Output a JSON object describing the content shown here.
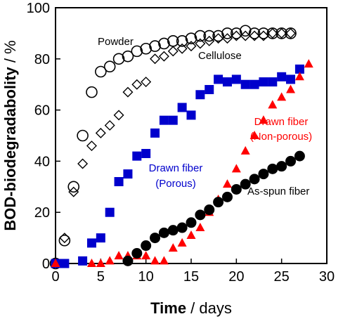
{
  "chart_data": {
    "type": "scatter",
    "xlabel_bold": "Time",
    "xlabel_rest": " / days",
    "ylabel_bold": "BOD-biodegradabolity",
    "ylabel_rest": " / %",
    "xlim": [
      0,
      30
    ],
    "ylim": [
      0,
      100
    ],
    "xticks": [
      0,
      5,
      10,
      15,
      20,
      25,
      30
    ],
    "yticks": [
      0,
      20,
      40,
      60,
      80,
      100
    ],
    "grid": false,
    "legend": "none",
    "series": [
      {
        "name": "Powder",
        "marker": "open-circle",
        "color": "#000000",
        "label_lines": [
          "Powder"
        ],
        "x": [
          0,
          1,
          2,
          3,
          4,
          5,
          6,
          7,
          8,
          9,
          10,
          11,
          12,
          13,
          14,
          15,
          16,
          17,
          18,
          19,
          20,
          21,
          22,
          23,
          24,
          25,
          26
        ],
        "y": [
          0,
          9,
          30,
          50,
          67,
          75,
          77,
          80,
          81,
          83,
          84,
          85,
          86,
          87,
          87,
          88,
          89,
          89,
          89,
          90,
          90,
          91,
          90,
          90,
          90,
          90,
          90
        ]
      },
      {
        "name": "Cellulose",
        "marker": "open-diamond",
        "color": "#000000",
        "label_lines": [
          "Cellulose"
        ],
        "x": [
          1,
          2,
          3,
          4,
          5,
          6,
          7,
          8,
          9,
          10,
          11,
          12,
          13,
          14,
          15,
          16,
          17,
          18,
          19,
          20,
          21,
          22,
          23,
          24,
          25,
          26
        ],
        "y": [
          10,
          28,
          39,
          46,
          51,
          54,
          58,
          67,
          70,
          71,
          80,
          81,
          83,
          84,
          85,
          86,
          87,
          88,
          88,
          89,
          89,
          89,
          89,
          90,
          90,
          90
        ]
      },
      {
        "name": "Drawn fiber (Porous)",
        "marker": "filled-square",
        "color": "#0000cc",
        "label_lines": [
          "Drawn fiber",
          "(Porous)"
        ],
        "x": [
          0,
          1,
          3,
          4,
          5,
          6,
          7,
          8,
          9,
          10,
          11,
          12,
          13,
          14,
          15,
          16,
          17,
          18,
          19,
          20,
          21,
          22,
          23,
          24,
          25,
          26,
          27
        ],
        "y": [
          0,
          0,
          1,
          8,
          10,
          20,
          32,
          35,
          42,
          43,
          51,
          56,
          56,
          61,
          58,
          66,
          68,
          72,
          71,
          72,
          70,
          70,
          71,
          71,
          73,
          72,
          76
        ]
      },
      {
        "name": "Drawn fiber (Non-porous)",
        "marker": "filled-triangle",
        "color": "#ff0000",
        "label_lines": [
          "Drawn fiber",
          "(Non-porous)"
        ],
        "x": [
          0,
          4,
          5,
          6,
          7,
          8,
          9,
          10,
          11,
          12,
          13,
          14,
          15,
          16,
          17,
          18,
          19,
          20,
          21,
          22,
          23,
          24,
          25,
          26,
          27,
          28
        ],
        "y": [
          0,
          0,
          0,
          1,
          3,
          3,
          3,
          3,
          1,
          1,
          6,
          8,
          11,
          14,
          20,
          25,
          31,
          37,
          44,
          50,
          56,
          62,
          65,
          68,
          73,
          78
        ]
      },
      {
        "name": "As-spun fiber",
        "marker": "filled-circle",
        "color": "#000000",
        "label_lines": [
          "As-spun fiber"
        ],
        "x": [
          8,
          9,
          10,
          11,
          12,
          13,
          14,
          15,
          16,
          17,
          18,
          19,
          20,
          21,
          22,
          23,
          24,
          25,
          26,
          27
        ],
        "y": [
          1,
          4,
          7,
          10,
          12,
          13,
          14,
          16,
          19,
          21,
          24,
          26,
          29,
          31,
          33,
          35,
          37,
          38,
          40,
          42
        ]
      }
    ]
  }
}
